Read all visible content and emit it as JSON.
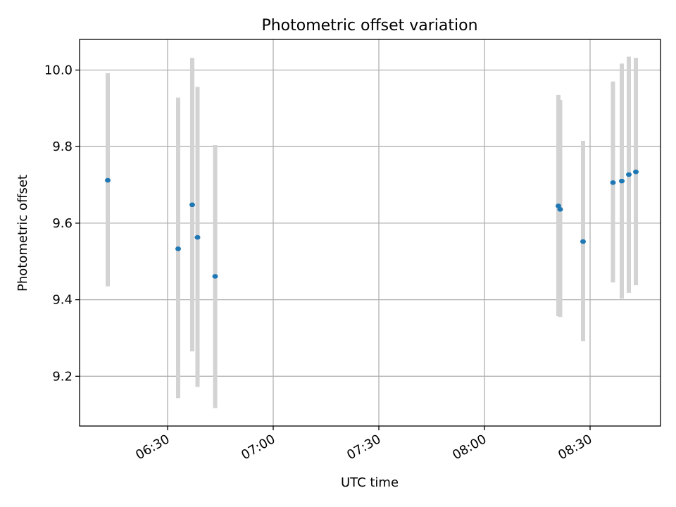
{
  "chart_data": {
    "type": "scatter",
    "title": "Photometric offset variation",
    "xlabel": "UTC time",
    "ylabel": "Photometric offset",
    "grid": true,
    "x_tick_labels": [
      "06:30",
      "07:00",
      "07:30",
      "08:00",
      "08:30"
    ],
    "x_tick_values": [
      "06:30",
      "07:00",
      "07:30",
      "08:00",
      "08:30"
    ],
    "y_tick_labels": [
      "9.2",
      "9.4",
      "9.6",
      "9.8",
      "10.0"
    ],
    "y_tick_values": [
      9.2,
      9.4,
      9.6,
      9.8,
      10.0
    ],
    "xlim": [
      "06:05",
      "08:50"
    ],
    "ylim": [
      9.07,
      10.08
    ],
    "marker_color": "#1f77b4",
    "errorbar_color": "#d3d3d3",
    "points": [
      {
        "time": "06:13",
        "y": 9.712,
        "y_low": 9.435,
        "y_high": 9.992
      },
      {
        "time": "06:33",
        "y": 9.533,
        "y_low": 9.143,
        "y_high": 9.928
      },
      {
        "time": "06:37",
        "y": 9.648,
        "y_low": 9.265,
        "y_high": 10.032
      },
      {
        "time": "06:38.5",
        "y": 9.563,
        "y_low": 9.172,
        "y_high": 9.956
      },
      {
        "time": "06:43.5",
        "y": 9.461,
        "y_low": 9.117,
        "y_high": 9.804
      },
      {
        "time": "08:21",
        "y": 9.645,
        "y_low": 9.357,
        "y_high": 9.935
      },
      {
        "time": "08:21.5",
        "y": 9.636,
        "y_low": 9.355,
        "y_high": 9.922
      },
      {
        "time": "08:28",
        "y": 9.552,
        "y_low": 9.292,
        "y_high": 9.815
      },
      {
        "time": "08:36.5",
        "y": 9.706,
        "y_low": 9.445,
        "y_high": 9.97
      },
      {
        "time": "08:39",
        "y": 9.71,
        "y_low": 9.403,
        "y_high": 10.017
      },
      {
        "time": "08:41",
        "y": 9.727,
        "y_low": 9.418,
        "y_high": 10.035
      },
      {
        "time": "08:43",
        "y": 9.734,
        "y_low": 9.438,
        "y_high": 10.032
      }
    ]
  }
}
